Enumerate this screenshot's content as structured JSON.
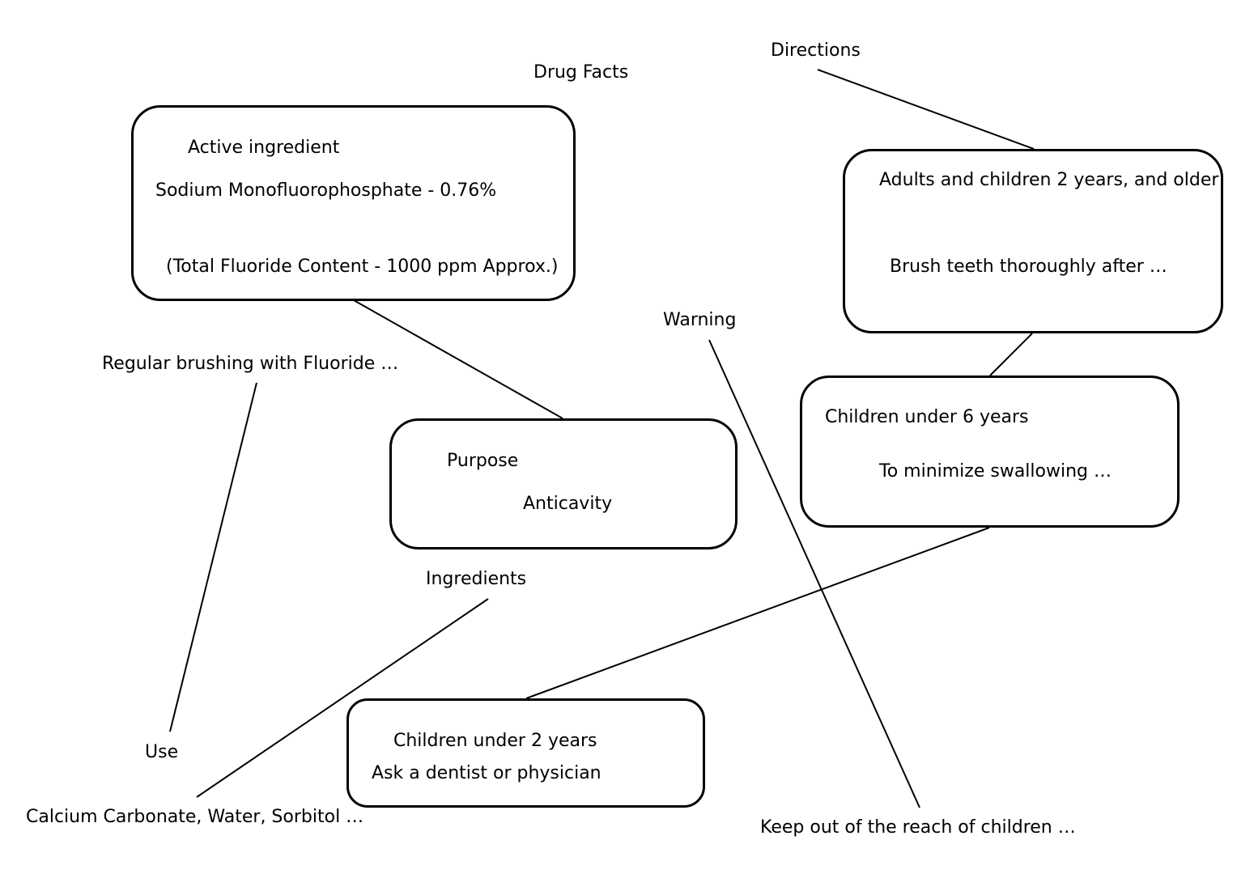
{
  "title": "Drug Facts",
  "nodes": {
    "active_ingredient": {
      "heading": "Active ingredient",
      "detail": "Sodium Monofluorophosphate - 0.76%",
      "note": "(Total Fluoride Content - 1000 ppm Approx.)"
    },
    "purpose": {
      "heading": "Purpose",
      "detail": "Anticavity"
    },
    "use": {
      "label": "Use",
      "detail": "Regular brushing with Fluoride …"
    },
    "ingredients": {
      "label": "Ingredients",
      "detail": "Calcium Carbonate, Water, Sorbitol …"
    },
    "warning": {
      "label": "Warning",
      "detail": "Keep out of the reach of children …"
    },
    "directions": {
      "label": "Directions",
      "adults": {
        "heading": "Adults and children 2 years, and older",
        "detail": "Brush teeth thoroughly after …"
      },
      "under6": {
        "heading": "Children under 6 years",
        "detail": "To minimize swallowing …"
      },
      "under2": {
        "heading": "Children under 2 years",
        "detail": "Ask a dentist or physician"
      }
    }
  },
  "colors": {
    "stroke": "#000000",
    "background": "#ffffff"
  }
}
